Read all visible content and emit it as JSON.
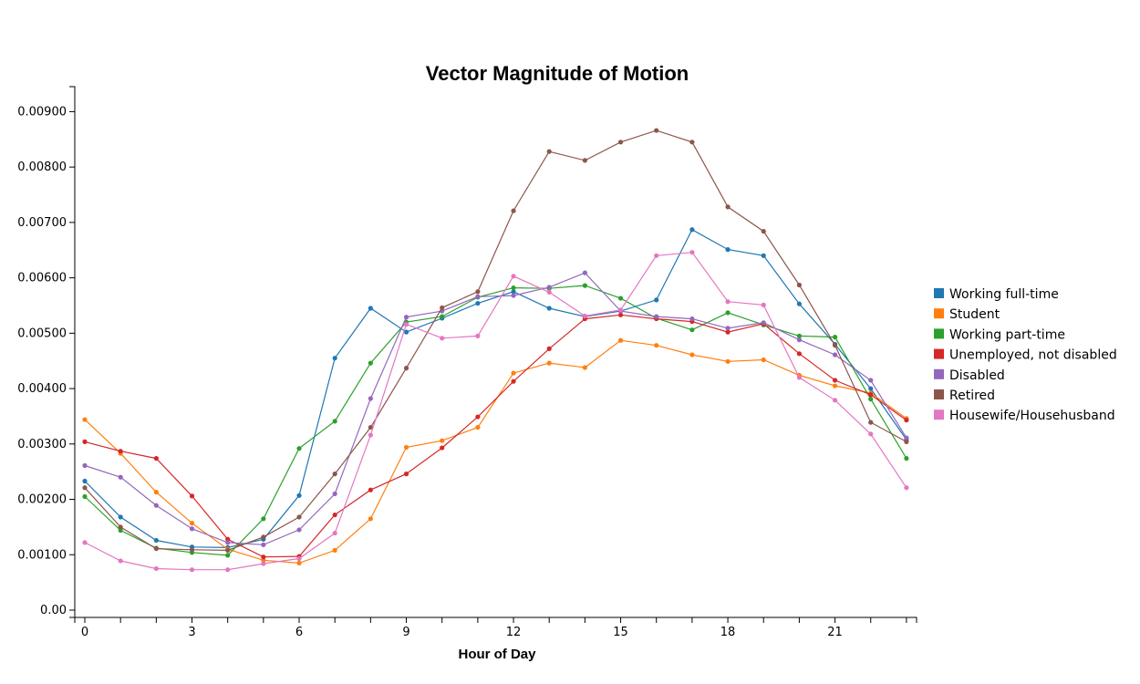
{
  "chart_data": {
    "type": "line",
    "title": "Vector Magnitude of Motion",
    "xlabel": "Hour of Day",
    "ylabel": "",
    "xlim": [
      0,
      23
    ],
    "ylim": [
      0,
      0.0095
    ],
    "x_ticks": [
      0,
      3,
      6,
      9,
      12,
      15,
      18,
      21
    ],
    "x_tick_labels": [
      "0",
      "3",
      "6",
      "9",
      "12",
      "15",
      "18",
      "21"
    ],
    "y_ticks": [
      0,
      0.001,
      0.002,
      0.003,
      0.004,
      0.005,
      0.006,
      0.007,
      0.008,
      0.009
    ],
    "y_tick_labels": [
      "0.00",
      "0.00100",
      "0.00200",
      "0.00300",
      "0.00400",
      "0.00500",
      "0.00600",
      "0.00700",
      "0.00800",
      "0.00900"
    ],
    "legend_position": "right",
    "x": [
      0,
      1,
      2,
      3,
      4,
      5,
      6,
      7,
      8,
      9,
      10,
      11,
      12,
      13,
      14,
      15,
      16,
      17,
      18,
      19,
      20,
      21,
      22,
      23
    ],
    "series": [
      {
        "name": "Working full-time",
        "color": "#1f77b4",
        "values": [
          0.00233,
          0.00168,
          0.00126,
          0.00114,
          0.00113,
          0.00128,
          0.00207,
          0.00455,
          0.00545,
          0.00502,
          0.00527,
          0.00554,
          0.00575,
          0.00545,
          0.0053,
          0.0054,
          0.0056,
          0.00687,
          0.00651,
          0.0064,
          0.00553,
          0.0048,
          0.004,
          0.00308
        ]
      },
      {
        "name": "Student",
        "color": "#ff7f0e",
        "values": [
          0.00344,
          0.00283,
          0.00213,
          0.00157,
          0.0011,
          0.0009,
          0.00085,
          0.00108,
          0.00165,
          0.00294,
          0.00306,
          0.0033,
          0.00428,
          0.00446,
          0.00438,
          0.00487,
          0.00478,
          0.00461,
          0.00449,
          0.00452,
          0.00424,
          0.00405,
          0.00392,
          0.00346
        ]
      },
      {
        "name": "Working part-time",
        "color": "#2ca02c",
        "values": [
          0.00205,
          0.00144,
          0.00112,
          0.00104,
          0.00099,
          0.00165,
          0.00292,
          0.00341,
          0.00446,
          0.0052,
          0.0053,
          0.00565,
          0.00582,
          0.00581,
          0.00586,
          0.00563,
          0.00527,
          0.00506,
          0.00537,
          0.00515,
          0.00495,
          0.00493,
          0.00381,
          0.00274
        ]
      },
      {
        "name": "Unemployed, not disabled",
        "color": "#d62728",
        "values": [
          0.00304,
          0.00287,
          0.00274,
          0.00206,
          0.00128,
          0.00096,
          0.00097,
          0.00172,
          0.00217,
          0.00246,
          0.00293,
          0.00349,
          0.00413,
          0.00472,
          0.00526,
          0.00533,
          0.00526,
          0.00521,
          0.00502,
          0.00517,
          0.00463,
          0.00415,
          0.00389,
          0.00343
        ]
      },
      {
        "name": "Disabled",
        "color": "#9467bd",
        "values": [
          0.00261,
          0.0024,
          0.00189,
          0.00147,
          0.00122,
          0.00118,
          0.00145,
          0.0021,
          0.00382,
          0.00529,
          0.0054,
          0.00566,
          0.00568,
          0.00583,
          0.00609,
          0.0054,
          0.0053,
          0.00526,
          0.00509,
          0.00519,
          0.00488,
          0.00461,
          0.00415,
          0.00311
        ]
      },
      {
        "name": "Retired",
        "color": "#8c564b",
        "values": [
          0.00221,
          0.0015,
          0.00111,
          0.00109,
          0.00108,
          0.00132,
          0.00168,
          0.00246,
          0.0033,
          0.00437,
          0.00546,
          0.00575,
          0.00721,
          0.00828,
          0.00812,
          0.00845,
          0.00866,
          0.00845,
          0.00728,
          0.00684,
          0.00587,
          0.00478,
          0.00339,
          0.00304
        ]
      },
      {
        "name": "Housewife/Househusband",
        "color": "#e377c2",
        "values": [
          0.00122,
          0.00089,
          0.00075,
          0.00073,
          0.00073,
          0.00084,
          0.00093,
          0.00139,
          0.00316,
          0.00516,
          0.00491,
          0.00495,
          0.00603,
          0.00574,
          0.00531,
          0.00542,
          0.0064,
          0.00646,
          0.00557,
          0.00551,
          0.0042,
          0.00379,
          0.00318,
          0.00221
        ]
      }
    ]
  }
}
